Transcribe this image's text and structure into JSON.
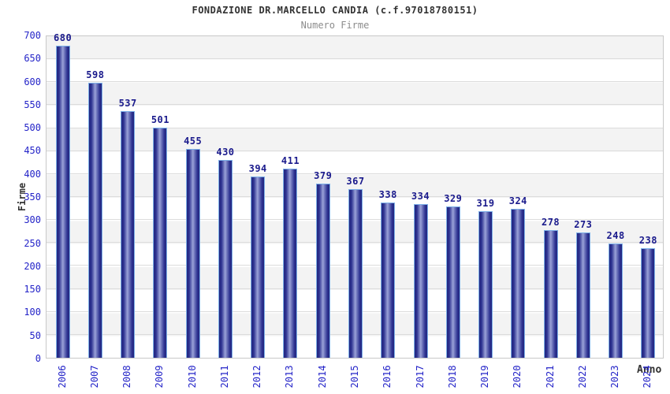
{
  "chart_data": {
    "type": "bar",
    "title": "FONDAZIONE DR.MARCELLO CANDIA (c.f.97018780151)",
    "subtitle": "Numero Firme",
    "xlabel": "Anno",
    "ylabel": "Firme",
    "categories": [
      "2006",
      "2007",
      "2008",
      "2009",
      "2010",
      "2011",
      "2012",
      "2013",
      "2014",
      "2015",
      "2016",
      "2017",
      "2018",
      "2019",
      "2020",
      "2021",
      "2022",
      "2023",
      "2024"
    ],
    "values": [
      680,
      598,
      537,
      501,
      455,
      430,
      394,
      411,
      379,
      367,
      338,
      334,
      329,
      319,
      324,
      278,
      273,
      248,
      238
    ],
    "ylim": [
      0,
      700
    ],
    "ytick_step": 50,
    "grid": true,
    "legend_position": "none",
    "layout": {
      "value_labels_shown": true,
      "x_labels_rotated_degrees": 90,
      "background_bands": "alternating gray/white every 50 units"
    },
    "colors": {
      "bar_dark": "#23277f",
      "bar_light": "#9aa2d8",
      "bar_border": "#7db0e8",
      "value_label": "#1a1a8c",
      "tick_label": "#2424c8",
      "title": "#323232",
      "subtitle": "#8c8c8c",
      "band_gray": "#f3f3f3",
      "band_white": "#ffffff",
      "plot_border": "#c8c8c8"
    }
  }
}
